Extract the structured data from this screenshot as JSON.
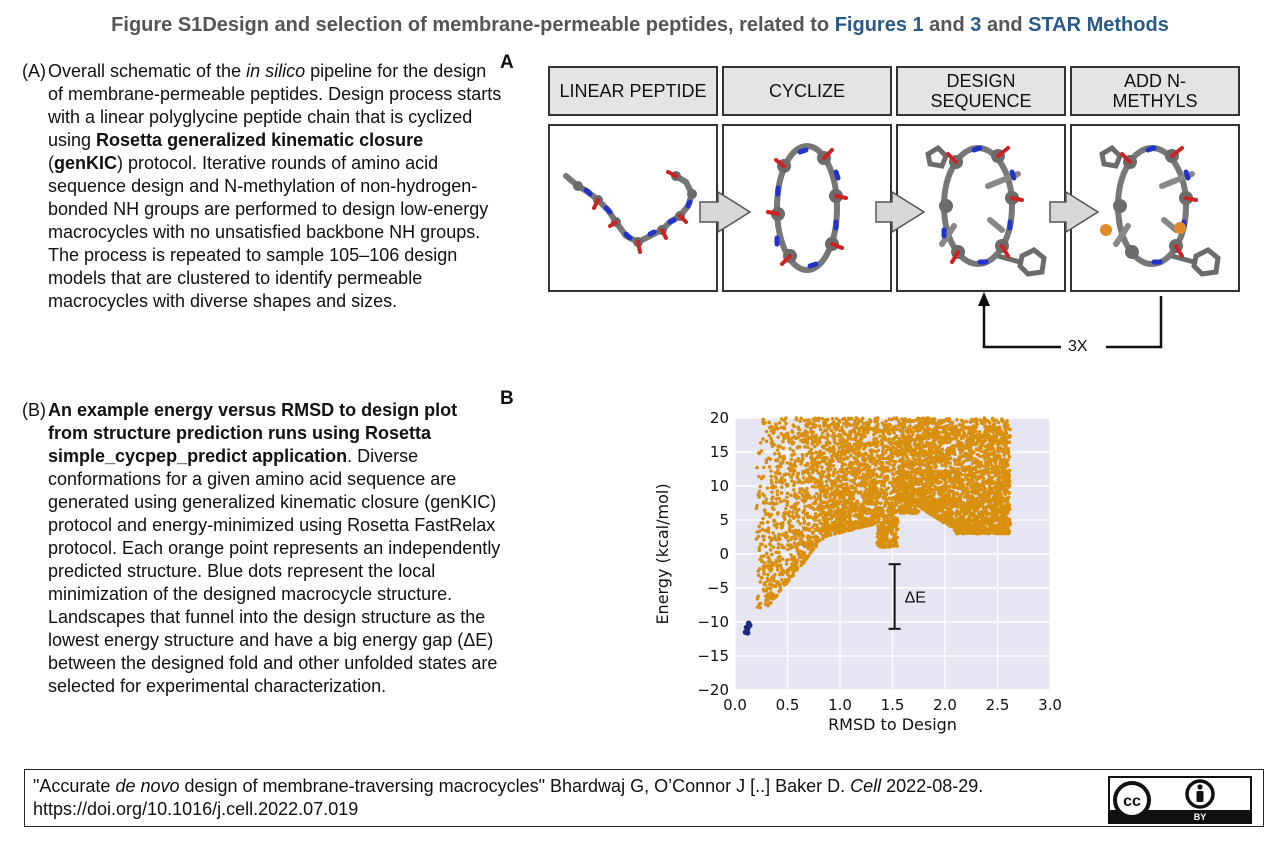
{
  "title": {
    "prefix": "Figure S1",
    "main": "Design and selection of membrane-permeable peptides, related to ",
    "link1": "Figures 1",
    "and1": " and ",
    "link2": "3",
    "and2": " and ",
    "link3": "STAR Methods"
  },
  "captionA": {
    "label": "(A)",
    "t1": "Overall schematic of the ",
    "t1_italic": "in silico",
    "t2": " pipeline for the design of membrane-permeable peptides. Design process starts with a linear polyglycine peptide chain that is cyclized using ",
    "t2_bold": "Rosetta generalized kinematic closure",
    "t3": " (",
    "t3_bold": "genKIC",
    "t4": ") protocol. Iterative rounds of amino acid sequence design and N-methylation of non-hydrogen-bonded NH groups are performed to design low-energy macrocycles with no unsatisfied backbone NH groups. The process is repeated to sample 105–106 design models that are clustered to identify permeable macrocycles with diverse shapes and sizes."
  },
  "captionB": {
    "label": "(B)",
    "bold": "An example energy versus RMSD to design plot from structure prediction runs using Rosetta simple_cycpep_predict application",
    "rest": ". Diverse conformations for a given amino acid sequence are generated using generalized kinematic closure (genKIC) protocol and energy-minimized using Rosetta FastRelax protocol. Each orange point represents an independently predicted structure. Blue dots represent the local minimization of the designed macrocycle structure. Landscapes that funnel into the design structure as the lowest energy structure and have a big energy gap (ΔE) between the designed fold and other unfolded states are selected for experimental characterization."
  },
  "panelA": {
    "letter": "A",
    "steps": [
      "LINEAR PEPTIDE",
      "CYCLIZE",
      "DESIGN SEQUENCE",
      "ADD N-METHYLS"
    ],
    "loop_label": "3X"
  },
  "panelB": {
    "letter": "B"
  },
  "chart_data": {
    "type": "scatter",
    "xlabel": "RMSD to Design",
    "ylabel": "Energy (kcal/mol)",
    "xlim": [
      0,
      3.0
    ],
    "ylim": [
      -20,
      20
    ],
    "xticks": [
      "0.0",
      "0.5",
      "1.0",
      "1.5",
      "2.0",
      "2.5",
      "3.0"
    ],
    "yticks": [
      "20",
      "15",
      "10",
      "5",
      "0",
      "−5",
      "−10",
      "−15",
      "−20"
    ],
    "grid": true,
    "annotation": "ΔE",
    "annotation_range": [
      -11,
      -1.5
    ],
    "annotation_x": 1.52,
    "orange_color": "#d9900f",
    "blue_color": "#1a2a7a",
    "blue_points": [
      [
        0.1,
        -11.5
      ],
      [
        0.12,
        -11
      ],
      [
        0.11,
        -10.8
      ],
      [
        0.13,
        -10.2
      ],
      [
        0.12,
        -11.6
      ],
      [
        0.14,
        -10.5
      ]
    ]
  },
  "citation": {
    "q_open": "\"Accurate ",
    "title_italic": "de novo",
    "q_rest": " design of membrane-traversing macrocycles\"  Bhardwaj G, O’Connor J [..] Baker D. ",
    "journal": "Cell",
    "date": " 2022-08-29.",
    "doi": "https://doi.org/10.1016/j.cell.2022.07.019"
  },
  "license": {
    "by_text": "BY",
    "cc_text": "cc"
  }
}
